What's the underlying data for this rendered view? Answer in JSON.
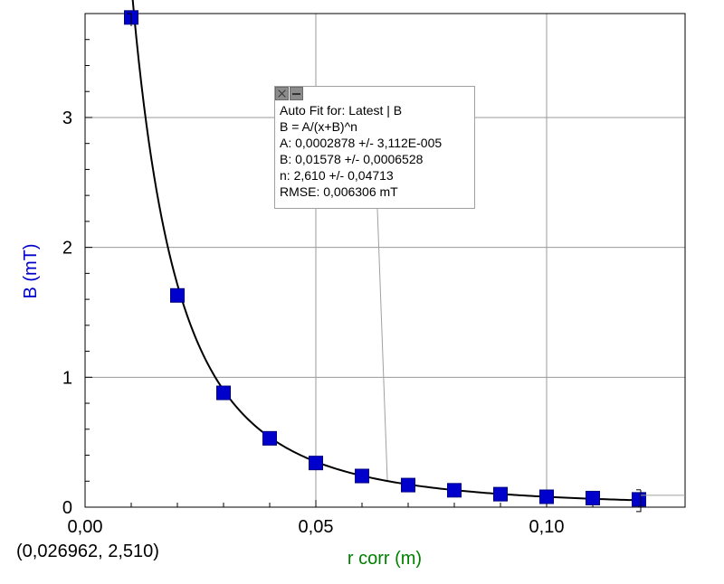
{
  "chart_data": {
    "type": "scatter",
    "xlabel": "r corr (m)",
    "ylabel": "B (mT)",
    "xlim": [
      0.0,
      0.13
    ],
    "ylim": [
      0.0,
      3.8
    ],
    "x_ticks": [
      {
        "value": 0.0,
        "label": "0,00"
      },
      {
        "value": 0.05,
        "label": "0,05"
      },
      {
        "value": 0.1,
        "label": "0,10"
      }
    ],
    "y_ticks": [
      {
        "value": 0,
        "label": "0"
      },
      {
        "value": 1,
        "label": "1"
      },
      {
        "value": 2,
        "label": "2"
      },
      {
        "value": 3,
        "label": "3"
      }
    ],
    "grid": true,
    "series": [
      {
        "marker": "square",
        "color": "#0000cc",
        "x": [
          0.01,
          0.02,
          0.03,
          0.04,
          0.05,
          0.06,
          0.07,
          0.08,
          0.09,
          0.1,
          0.11,
          0.12
        ],
        "y": [
          3.77,
          1.63,
          0.88,
          0.53,
          0.34,
          0.24,
          0.17,
          0.13,
          0.1,
          0.08,
          0.07,
          0.06
        ]
      }
    ],
    "fit": {
      "equation": "B = A/(x+B)^n",
      "A": 0.0002878,
      "B": 0.01578,
      "n": 2.61,
      "x_range": [
        0.01,
        0.12
      ],
      "color": "#000000"
    },
    "cursor_readout": "(0,026962, 2,510)",
    "annotation": {
      "title": "Auto Fit for: Latest | B",
      "lines": [
        "B = A/(x+B)^n",
        "A: 0,0002878 +/- 3,112E-005",
        "B: 0,01578 +/- 0,0006528",
        "n: 2,610 +/- 0,04713",
        "RMSE: 0,006306 mT"
      ],
      "pointer_to": {
        "x": 0.0655,
        "y": 0.2
      }
    },
    "colors": {
      "ylabel": "#0000cc",
      "xlabel": "#008000",
      "grid": "#9a9a9a",
      "axis": "#000000"
    }
  }
}
